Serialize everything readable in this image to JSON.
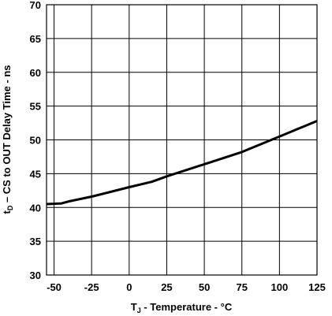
{
  "chart_data": {
    "type": "line",
    "title": "",
    "xlabel": {
      "main": "T",
      "sub": "J",
      "rest": " - Temperature - °C"
    },
    "ylabel": {
      "main": "t",
      "sub": "D",
      "rest": " – CS to OUT Delay Time - ns"
    },
    "xlim": [
      -55,
      125
    ],
    "ylim": [
      30,
      70
    ],
    "x_ticks": [
      -50,
      -25,
      0,
      25,
      50,
      75,
      100,
      125
    ],
    "x_tick_labels": [
      "-50",
      "-25",
      "0",
      "25",
      "50",
      "75",
      "100",
      "125"
    ],
    "y_ticks": [
      30,
      35,
      40,
      45,
      50,
      55,
      60,
      65,
      70
    ],
    "y_tick_labels": [
      "30",
      "35",
      "40",
      "45",
      "50",
      "55",
      "60",
      "65",
      "70"
    ],
    "grid": true,
    "series": [
      {
        "x": [
          -55,
          -45,
          -40,
          -25,
          0,
          15,
          25,
          50,
          75,
          100,
          125
        ],
        "y": [
          40.5,
          40.6,
          40.9,
          41.6,
          43.0,
          43.8,
          44.6,
          46.4,
          48.2,
          50.5,
          52.8
        ]
      }
    ]
  }
}
